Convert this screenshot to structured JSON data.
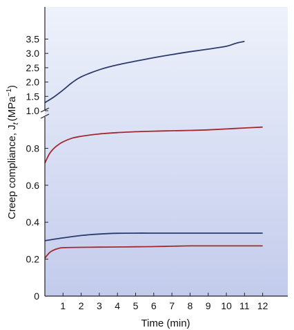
{
  "chart_data": {
    "type": "line",
    "xlabel": "Time (min)",
    "ylabel": "Creep compliance, J",
    "ylabel_subscript": "t",
    "ylabel_unit": "(MPa",
    "ylabel_unit_exp": "−1",
    "ylabel_close": ")",
    "xlim": [
      0,
      12
    ],
    "x_ticks": [
      "1",
      "2",
      "3",
      "4",
      "5",
      "6",
      "7",
      "8",
      "9",
      "10",
      "11",
      "12"
    ],
    "y_axis_broken": true,
    "y_lower_range": [
      0,
      1.0
    ],
    "y_upper_range": [
      1.0,
      3.5
    ],
    "y_ticks_lower": [
      "0",
      "0.2",
      "0.4",
      "0.6",
      "0.8"
    ],
    "y_ticks_upper": [
      "1.0",
      "1.5",
      "2.0",
      "2.5",
      "3.0",
      "3.5"
    ],
    "grid": false,
    "colors": {
      "navy": "#2b3a6b",
      "crimson": "#a3282e",
      "bg_top": "#eef2fb",
      "bg_bottom": "#c3cbec"
    },
    "series": [
      {
        "color": "#2b3a6b",
        "x": [
          0,
          0.5,
          1,
          1.5,
          2,
          3,
          4,
          5,
          6,
          7,
          8,
          9,
          10,
          10.5,
          11
        ],
        "y": [
          1.28,
          1.48,
          1.72,
          1.98,
          2.18,
          2.43,
          2.6,
          2.73,
          2.85,
          2.96,
          3.06,
          3.15,
          3.25,
          3.35,
          3.42
        ]
      },
      {
        "color": "#a3282e",
        "x": [
          0,
          0.25,
          0.5,
          0.75,
          1,
          1.5,
          2,
          3,
          4,
          5,
          6,
          7,
          8,
          9,
          10,
          11,
          12
        ],
        "y": [
          0.72,
          0.77,
          0.8,
          0.82,
          0.835,
          0.855,
          0.865,
          0.878,
          0.885,
          0.89,
          0.893,
          0.895,
          0.897,
          0.9,
          0.905,
          0.91,
          0.915
        ]
      },
      {
        "color": "#2b3a6b",
        "x": [
          0,
          1,
          2,
          3,
          4,
          5,
          6,
          7,
          8,
          9,
          10,
          11,
          12
        ],
        "y": [
          0.3,
          0.315,
          0.328,
          0.336,
          0.34,
          0.341,
          0.341,
          0.341,
          0.341,
          0.341,
          0.341,
          0.341,
          0.341
        ]
      },
      {
        "color": "#a3282e",
        "x": [
          0,
          0.25,
          0.5,
          0.75,
          1,
          2,
          3,
          4,
          5,
          6,
          7,
          8,
          9,
          10,
          11,
          12
        ],
        "y": [
          0.205,
          0.235,
          0.25,
          0.258,
          0.262,
          0.264,
          0.265,
          0.266,
          0.267,
          0.268,
          0.27,
          0.272,
          0.272,
          0.272,
          0.272,
          0.272
        ]
      }
    ]
  }
}
